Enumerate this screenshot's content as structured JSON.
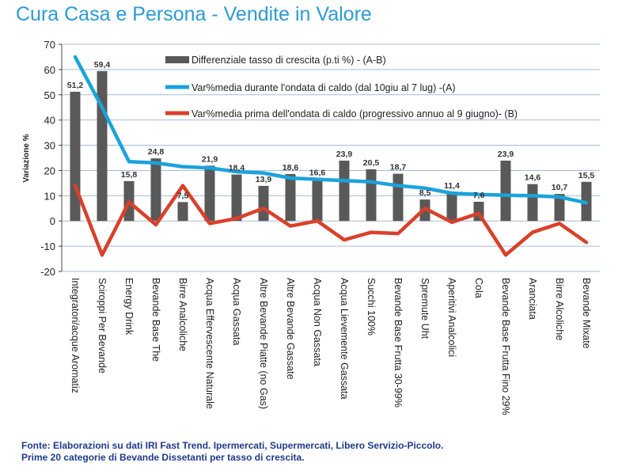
{
  "page": {
    "title": "Cura Casa e Persona - Vendite in Valore",
    "source_line1": "Fonte: Elaborazioni su dati IRI Fast Trend. Ipermercati, Supermercati, Libero Servizio-Piccolo.",
    "source_line2": "Prime 20 categorie di Bevande Dissetanti per tasso di crescita."
  },
  "colors": {
    "title": "#2b9bd3",
    "bar": "#595959",
    "line_a": "#1ba3dd",
    "line_b": "#d9402a",
    "grid": "#a6bcd9",
    "source": "#1f3a8a"
  },
  "chart_data": {
    "type": "bar",
    "ylabel": "Variazione %",
    "ylim": [
      -20,
      70
    ],
    "yticks": [
      -20,
      -10,
      0,
      10,
      20,
      30,
      40,
      50,
      60,
      70
    ],
    "ytick_labels": [
      "-20",
      "-10",
      "0",
      "10",
      "20",
      "30",
      "40",
      "50",
      "60",
      "70"
    ],
    "grid": true,
    "legend_position": "top-right",
    "categories": [
      "Integratori/acque Aromatiz",
      "Sciroppi Per Bevande",
      "Energy Drink",
      "Bevande Base The",
      "Birre Analcoliche",
      "Acqua Effervescente Naturale",
      "Acqua Gassata",
      "Altre Bevande Piatte (no Gas)",
      "Altre Bevande Gassate",
      "Acqua Non Gassata",
      "Acqua Lievemente Gassata",
      "Succhi 100%",
      "Bevande Base Frutta 30-99%",
      "Spremute Uht",
      "Aperitivi Analcolici",
      "Cola",
      "Bevande Base Frutta Fino 29%",
      "Aranciata",
      "Birre Alcoliche",
      "Bevande Mixate"
    ],
    "series": [
      {
        "name": "Differenziale tasso di crescita (p.ti %) - (A-B)",
        "type": "bar",
        "values": [
          51.2,
          59.4,
          15.8,
          24.8,
          7.5,
          21.9,
          18.4,
          13.9,
          18.6,
          16.6,
          23.9,
          20.5,
          18.7,
          8.5,
          11.4,
          7.6,
          23.9,
          14.6,
          10.7,
          15.5
        ],
        "labels": [
          "51,2",
          "59,4",
          "15,8",
          "24,8",
          "7,5",
          "21,9",
          "18,4",
          "13,9",
          "18,6",
          "16,6",
          "23,9",
          "20,5",
          "18,7",
          "8,5",
          "11,4",
          "7,6",
          "23,9",
          "14,6",
          "10,7",
          "15,5"
        ]
      },
      {
        "name": "Var%media durante l'ondata di caldo (dal 10giu al 7 lug) -(A)",
        "type": "line",
        "values": [
          65,
          45,
          23.5,
          23,
          21.5,
          21,
          19.5,
          19,
          17,
          16.5,
          16,
          15.5,
          14,
          13,
          11,
          10.5,
          10.2,
          10,
          9.5,
          7.2
        ]
      },
      {
        "name": "Var%media prima dell'ondata di caldo (progressivo annuo al 9 giugno)- (B)",
        "type": "line",
        "values": [
          14,
          -13.5,
          7.5,
          -1.5,
          14,
          -1,
          1,
          5,
          -2,
          0,
          -7.5,
          -4.5,
          -5,
          5,
          -0.5,
          3,
          -13.5,
          -4.5,
          -1,
          -8.5
        ]
      }
    ]
  }
}
